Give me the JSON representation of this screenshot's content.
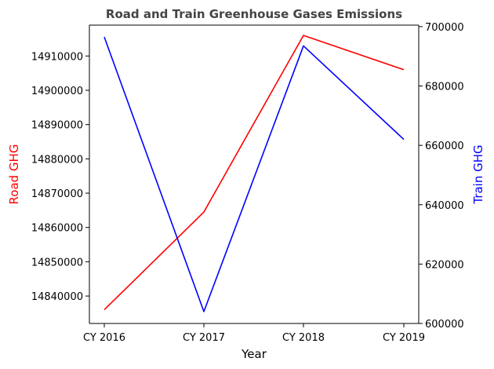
{
  "chart_data": {
    "type": "line",
    "title": "Road and Train Greenhouse Gases Emissions",
    "xlabel": "Year",
    "categories": [
      "CY 2016",
      "CY 2017",
      "CY 2018",
      "CY 2019"
    ],
    "grid": false,
    "legend": "none",
    "y_left": {
      "label": "Road GHG",
      "color": "#ff0000",
      "ylim": [
        14832000,
        14919000
      ],
      "ticks": [
        14840000,
        14850000,
        14860000,
        14870000,
        14880000,
        14890000,
        14900000,
        14910000
      ],
      "tick_labels": [
        "14840000",
        "14850000",
        "14860000",
        "14870000",
        "14880000",
        "14890000",
        "14900000",
        "14910000"
      ]
    },
    "y_right": {
      "label": "Train GHG",
      "color": "#0000ff",
      "ylim": [
        600000,
        700500
      ],
      "ticks": [
        600000,
        620000,
        640000,
        660000,
        680000,
        700000
      ],
      "tick_labels": [
        "600000",
        "620000",
        "640000",
        "660000",
        "680000",
        "700000"
      ]
    },
    "series": [
      {
        "axis": "left",
        "color": "#ff0000",
        "values": [
          14836000,
          14864500,
          14916000,
          14906000
        ]
      },
      {
        "axis": "right",
        "color": "#0000ff",
        "values": [
          696500,
          604000,
          693500,
          662000
        ]
      }
    ]
  }
}
